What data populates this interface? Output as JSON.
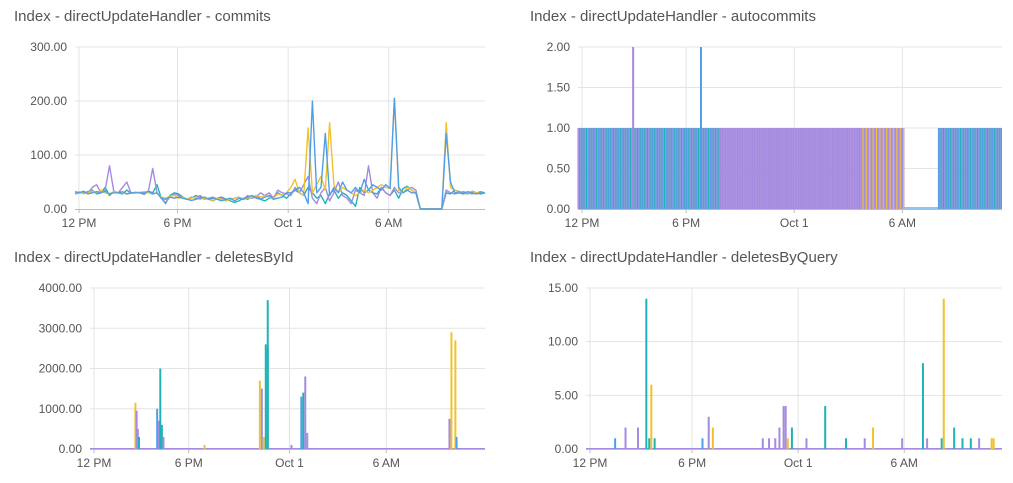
{
  "colors": {
    "teal": "#1fb3b8",
    "purple": "#a58bdf",
    "yellow": "#f2c12e",
    "blue": "#4f9fe8",
    "grid": "#e4e4e4",
    "axis": "#bdbdbd",
    "text": "#555555"
  },
  "chart_data": [
    {
      "type": "line",
      "title": "Index - directUpdateHandler - commits",
      "ylim": [
        0,
        300
      ],
      "yticks": [
        "0.00",
        "100.00",
        "200.00",
        "300.00"
      ],
      "x_ticks": [
        "12 PM",
        "6 PM",
        "Oct 1",
        "6 AM"
      ],
      "grid": true,
      "series": [
        {
          "values": [
            30,
            31,
            29,
            32,
            35,
            28,
            30,
            40,
            25,
            33,
            30,
            28,
            35,
            29,
            31,
            30,
            27,
            33,
            30,
            45,
            20,
            10,
            25,
            30,
            28,
            22,
            18,
            20,
            25,
            22,
            20,
            18,
            15,
            20,
            22,
            18,
            15,
            12,
            15,
            20,
            18,
            22,
            25,
            18,
            15,
            20,
            22,
            30,
            25,
            20,
            28,
            35,
            30,
            25,
            40,
            30,
            20,
            25,
            10,
            28,
            35,
            20,
            30,
            25,
            15,
            5,
            40,
            30,
            35,
            30,
            28,
            40,
            30,
            25,
            35,
            20,
            38,
            42,
            35,
            30,
            0,
            0,
            0,
            0,
            0,
            0,
            30,
            28,
            35,
            32,
            30,
            28,
            33,
            30,
            28,
            30
          ]
        },
        {
          "values": [
            28,
            30,
            32,
            29,
            40,
            45,
            30,
            35,
            80,
            33,
            30,
            40,
            50,
            29,
            31,
            30,
            27,
            33,
            75,
            30,
            20,
            12,
            22,
            28,
            25,
            20,
            18,
            22,
            20,
            25,
            18,
            20,
            22,
            18,
            20,
            15,
            18,
            20,
            22,
            18,
            25,
            20,
            22,
            30,
            25,
            30,
            20,
            35,
            30,
            28,
            25,
            40,
            30,
            45,
            60,
            20,
            10,
            30,
            40,
            15,
            30,
            50,
            25,
            20,
            10,
            35,
            30,
            25,
            80,
            30,
            20,
            40,
            30,
            25,
            40,
            30,
            30,
            35,
            40,
            35,
            0,
            0,
            0,
            0,
            0,
            0,
            35,
            30,
            28,
            30,
            32,
            30,
            28,
            30,
            32,
            30
          ]
        },
        {
          "values": [
            30,
            32,
            28,
            30,
            33,
            30,
            35,
            30,
            28,
            32,
            31,
            30,
            28,
            29,
            30,
            31,
            32,
            30,
            28,
            30,
            22,
            20,
            24,
            25,
            20,
            22,
            18,
            20,
            22,
            18,
            20,
            18,
            16,
            20,
            18,
            15,
            18,
            20,
            22,
            18,
            20,
            22,
            25,
            22,
            25,
            22,
            20,
            28,
            25,
            30,
            40,
            55,
            30,
            25,
            150,
            30,
            45,
            60,
            35,
            160,
            45,
            30,
            40,
            35,
            30,
            25,
            30,
            35,
            30,
            35,
            40,
            45,
            40,
            38,
            205,
            35,
            30,
            40,
            35,
            30,
            0,
            0,
            0,
            0,
            0,
            0,
            160,
            40,
            35,
            30,
            28,
            30,
            32,
            30,
            30,
            30
          ]
        },
        {
          "values": [
            32,
            30,
            33,
            28,
            30,
            32,
            30,
            33,
            28,
            30,
            30,
            32,
            28,
            30,
            30,
            30,
            30,
            33,
            28,
            30,
            20,
            18,
            22,
            20,
            22,
            20,
            18,
            16,
            18,
            20,
            22,
            18,
            20,
            18,
            15,
            18,
            20,
            15,
            20,
            18,
            22,
            25,
            20,
            18,
            22,
            25,
            18,
            20,
            22,
            30,
            30,
            35,
            40,
            30,
            10,
            200,
            30,
            40,
            140,
            25,
            40,
            30,
            50,
            35,
            30,
            40,
            30,
            55,
            35,
            45,
            40,
            35,
            45,
            38,
            205,
            40,
            30,
            35,
            30,
            30,
            0,
            0,
            0,
            0,
            0,
            0,
            140,
            50,
            30,
            30,
            28,
            32,
            30,
            28,
            30,
            30
          ]
        }
      ]
    },
    {
      "type": "bar",
      "title": "Index - directUpdateHandler - autocommits",
      "ylim": [
        0,
        2
      ],
      "yticks": [
        "0.00",
        "0.50",
        "1.00",
        "1.50",
        "2.00"
      ],
      "x_ticks": [
        "12 PM",
        "6 PM",
        "Oct 1",
        "6 AM"
      ],
      "grid": true,
      "base": {
        "value": 1,
        "ranges": [
          [
            0,
            0.77
          ],
          [
            0.85,
            1.0
          ]
        ],
        "gap": [
          0.77,
          0.85
        ]
      },
      "spikes": [
        {
          "x": 0.13,
          "value": 2,
          "series": "purple"
        },
        {
          "x": 0.29,
          "value": 2,
          "series": "blue"
        }
      ]
    },
    {
      "type": "bar",
      "title": "Index - directUpdateHandler - deletesById",
      "ylim": [
        0,
        4000
      ],
      "yticks": [
        "0.00",
        "1000.00",
        "2000.00",
        "3000.00",
        "4000.00"
      ],
      "x_ticks": [
        "12 PM",
        "6 PM",
        "Oct 1",
        "6 AM"
      ],
      "grid": true,
      "spikes": [
        {
          "x": 0.115,
          "value": 1150,
          "series": "yellow"
        },
        {
          "x": 0.118,
          "value": 950,
          "series": "purple"
        },
        {
          "x": 0.121,
          "value": 500,
          "series": "purple"
        },
        {
          "x": 0.124,
          "value": 300,
          "series": "teal"
        },
        {
          "x": 0.17,
          "value": 1000,
          "series": "blue"
        },
        {
          "x": 0.174,
          "value": 700,
          "series": "purple"
        },
        {
          "x": 0.178,
          "value": 2000,
          "series": "teal"
        },
        {
          "x": 0.182,
          "value": 600,
          "series": "teal"
        },
        {
          "x": 0.186,
          "value": 300,
          "series": "purple"
        },
        {
          "x": 0.29,
          "value": 100,
          "series": "yellow"
        },
        {
          "x": 0.43,
          "value": 1700,
          "series": "yellow"
        },
        {
          "x": 0.435,
          "value": 1500,
          "series": "purple"
        },
        {
          "x": 0.44,
          "value": 300,
          "series": "yellow"
        },
        {
          "x": 0.445,
          "value": 2600,
          "series": "teal"
        },
        {
          "x": 0.45,
          "value": 3700,
          "series": "teal"
        },
        {
          "x": 0.45,
          "value": 2500,
          "series": "teal"
        },
        {
          "x": 0.51,
          "value": 100,
          "series": "purple"
        },
        {
          "x": 0.535,
          "value": 1300,
          "series": "blue"
        },
        {
          "x": 0.54,
          "value": 1400,
          "series": "teal"
        },
        {
          "x": 0.545,
          "value": 1800,
          "series": "purple"
        },
        {
          "x": 0.55,
          "value": 400,
          "series": "purple"
        },
        {
          "x": 0.91,
          "value": 750,
          "series": "purple"
        },
        {
          "x": 0.915,
          "value": 2900,
          "series": "yellow"
        },
        {
          "x": 0.925,
          "value": 2700,
          "series": "yellow"
        },
        {
          "x": 0.928,
          "value": 300,
          "series": "blue"
        }
      ]
    },
    {
      "type": "bar",
      "title": "Index - directUpdateHandler - deletesByQuery",
      "ylim": [
        0,
        15
      ],
      "yticks": [
        "0.00",
        "5.00",
        "10.00",
        "15.00"
      ],
      "x_ticks": [
        "12 PM",
        "6 PM",
        "Oct 1",
        "6 AM"
      ],
      "grid": true,
      "spikes": [
        {
          "x": 0.07,
          "value": 1,
          "series": "blue"
        },
        {
          "x": 0.095,
          "value": 2,
          "series": "purple"
        },
        {
          "x": 0.125,
          "value": 2,
          "series": "purple"
        },
        {
          "x": 0.145,
          "value": 14,
          "series": "teal"
        },
        {
          "x": 0.152,
          "value": 1,
          "series": "teal"
        },
        {
          "x": 0.157,
          "value": 6,
          "series": "yellow"
        },
        {
          "x": 0.165,
          "value": 1,
          "series": "teal"
        },
        {
          "x": 0.28,
          "value": 1,
          "series": "blue"
        },
        {
          "x": 0.295,
          "value": 3,
          "series": "purple"
        },
        {
          "x": 0.305,
          "value": 2,
          "series": "yellow"
        },
        {
          "x": 0.425,
          "value": 1,
          "series": "purple"
        },
        {
          "x": 0.44,
          "value": 1,
          "series": "purple"
        },
        {
          "x": 0.455,
          "value": 1,
          "series": "purple"
        },
        {
          "x": 0.465,
          "value": 2,
          "series": "purple"
        },
        {
          "x": 0.475,
          "value": 4,
          "series": "purple"
        },
        {
          "x": 0.48,
          "value": 4,
          "series": "purple"
        },
        {
          "x": 0.485,
          "value": 1,
          "series": "yellow"
        },
        {
          "x": 0.495,
          "value": 2,
          "series": "teal"
        },
        {
          "x": 0.53,
          "value": 1,
          "series": "purple"
        },
        {
          "x": 0.575,
          "value": 4,
          "series": "teal"
        },
        {
          "x": 0.625,
          "value": 1,
          "series": "teal"
        },
        {
          "x": 0.67,
          "value": 1,
          "series": "purple"
        },
        {
          "x": 0.69,
          "value": 2,
          "series": "yellow"
        },
        {
          "x": 0.76,
          "value": 1,
          "series": "purple"
        },
        {
          "x": 0.81,
          "value": 8,
          "series": "teal"
        },
        {
          "x": 0.82,
          "value": 1,
          "series": "purple"
        },
        {
          "x": 0.855,
          "value": 1,
          "series": "teal"
        },
        {
          "x": 0.86,
          "value": 14,
          "series": "yellow"
        },
        {
          "x": 0.885,
          "value": 2,
          "series": "teal"
        },
        {
          "x": 0.905,
          "value": 1,
          "series": "teal"
        },
        {
          "x": 0.925,
          "value": 1,
          "series": "teal"
        },
        {
          "x": 0.945,
          "value": 1,
          "series": "purple"
        },
        {
          "x": 0.975,
          "value": 1,
          "series": "yellow"
        },
        {
          "x": 0.98,
          "value": 1,
          "series": "yellow"
        }
      ]
    }
  ]
}
